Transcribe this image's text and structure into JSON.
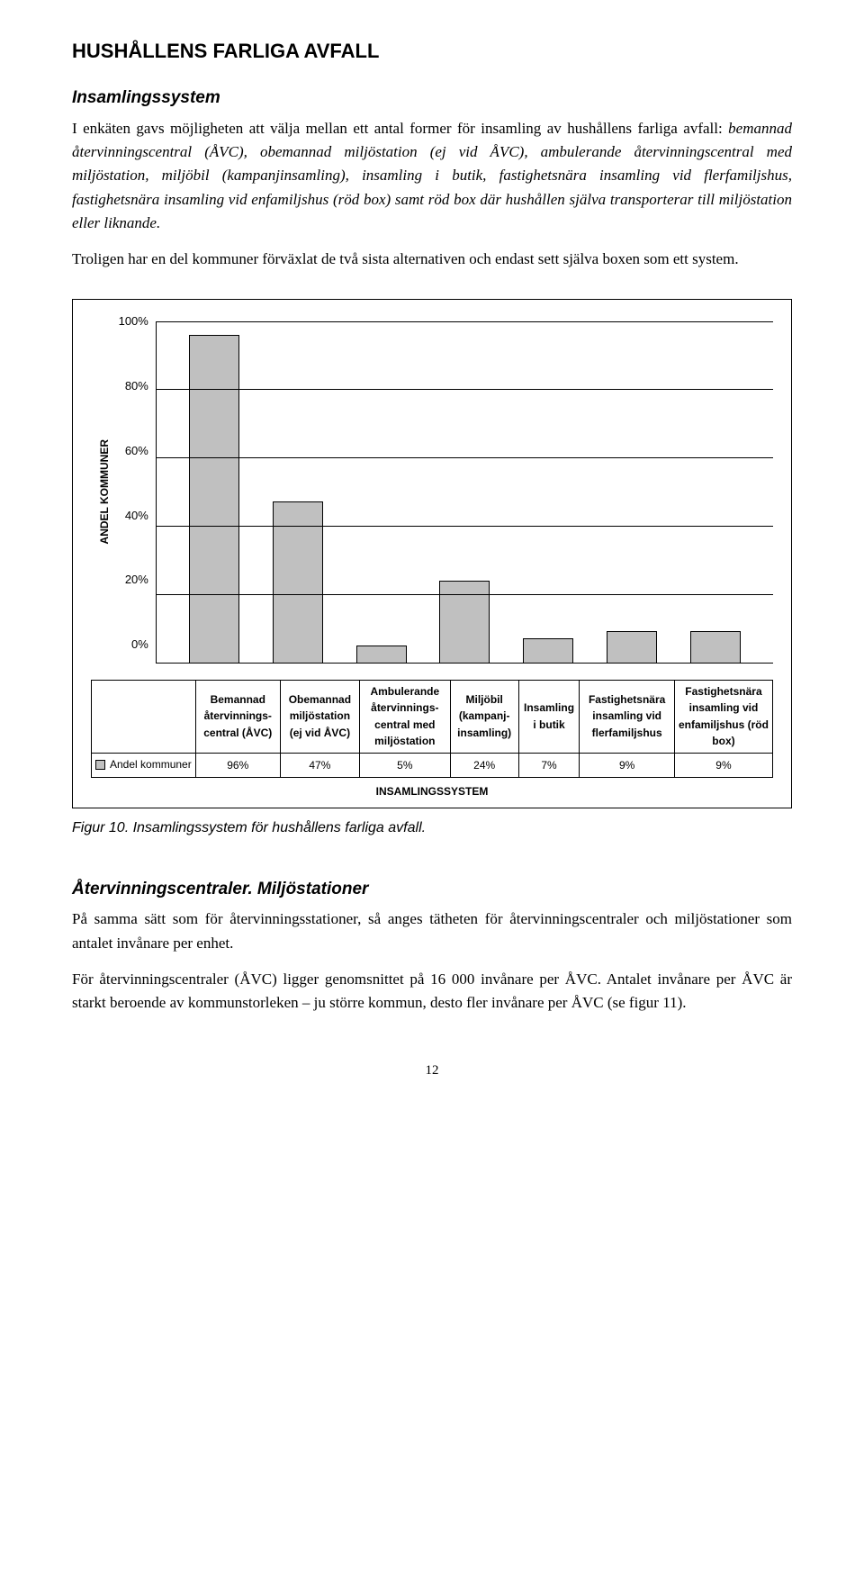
{
  "title": "HUSHÅLLENS FARLIGA AVFALL",
  "section1": {
    "heading": "Insamlingssystem",
    "lead": "I enkäten gavs möjligheten att välja mellan ett antal former för insamling av hushållens farliga avfall: ",
    "lead_italic": "bemannad återvinningscentral (ÅVC), obemannad miljöstation (ej vid ÅVC), ambulerande återvinningscentral med miljöstation, miljöbil (kampanjinsamling), insamling i butik, fastighetsnära insamling vid flerfamiljshus, fastighetsnära insamling vid enfamiljshus (röd box) samt röd box där hushållen själva transporterar till miljöstation eller liknande.",
    "para2": "Troligen har en del kommuner förväxlat de två sista alternativen och endast sett själva boxen som ett system."
  },
  "chart": {
    "ylabel": "ANDEL KOMMUNER",
    "ymax": 100,
    "ystep": 20,
    "bar_color": "#c0c0c0",
    "border_color": "#000000",
    "categories": [
      "Bemannad återvinnings-central (ÅVC)",
      "Obemannad miljöstation (ej vid ÅVC)",
      "Ambulerande återvinnings-central med miljöstation",
      "Miljöbil (kampanj-insamling)",
      "Insamling i butik",
      "Fastighetsnära insamling vid flerfamiljshus",
      "Fastighetsnära insamling vid enfamiljshus (röd box)"
    ],
    "values": [
      96,
      47,
      5,
      24,
      7,
      9,
      9
    ],
    "value_labels": [
      "96%",
      "47%",
      "5%",
      "24%",
      "7%",
      "9%",
      "9%"
    ],
    "row_label": "Andel kommuner",
    "xlabel": "INSAMLINGSSYSTEM",
    "ytick_labels": [
      "100%",
      "80%",
      "60%",
      "40%",
      "20%",
      "0%"
    ]
  },
  "caption": "Figur 10. Insamlingssystem för hushållens farliga avfall.",
  "section2": {
    "heading": "Återvinningscentraler. Miljöstationer",
    "para1": "På samma sätt som för återvinningsstationer, så anges tätheten för återvinningscentraler och miljöstationer som antalet invånare per enhet.",
    "para2": "För återvinningscentraler (ÅVC) ligger genomsnittet på 16 000 invånare per ÅVC. Antalet invånare per ÅVC är starkt beroende av kommunstorleken – ju större kommun, desto fler invånare per ÅVC (se figur 11)."
  },
  "page_number": "12"
}
